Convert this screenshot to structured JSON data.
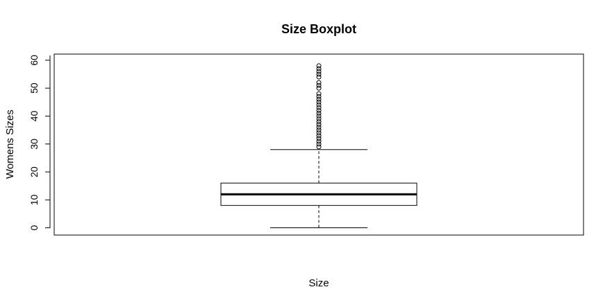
{
  "chart_data": {
    "type": "boxplot",
    "title": "Size Boxplot",
    "xlabel": "Size",
    "ylabel": "Womens Sizes",
    "ylim": [
      -2.6,
      62.2
    ],
    "y_ticks": [
      0,
      10,
      20,
      30,
      40,
      50,
      60
    ],
    "grid": false,
    "legend": "none",
    "series": [
      {
        "min": 0,
        "q1": 8,
        "median": 12,
        "q3": 16,
        "max": 28,
        "outliers": [
          29,
          30,
          31,
          32,
          33,
          34,
          35,
          36,
          37,
          38,
          39,
          40,
          41,
          42,
          43,
          44,
          45,
          46,
          47,
          48,
          50,
          51,
          52,
          54,
          55,
          56,
          57,
          58
        ]
      }
    ]
  }
}
